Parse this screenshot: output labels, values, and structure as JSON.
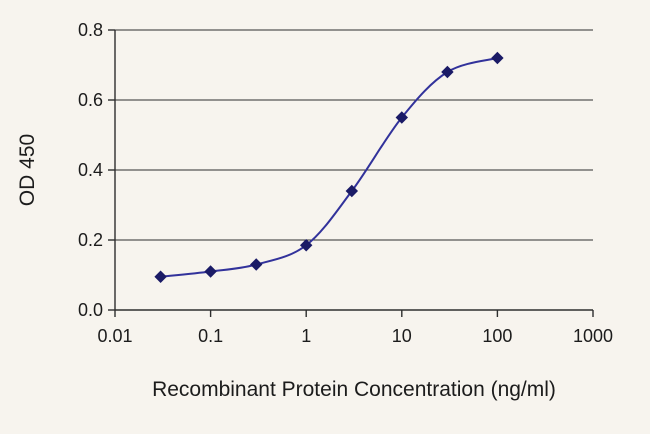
{
  "chart_data": {
    "type": "line",
    "title": "",
    "xlabel": "Recombinant Protein Concentration (ng/ml)",
    "ylabel": "OD 450",
    "x_scale": "log",
    "xlim": [
      0.01,
      1000
    ],
    "ylim": [
      0,
      0.8
    ],
    "x_ticks": [
      0.01,
      0.1,
      1,
      10,
      100,
      1000
    ],
    "x_tick_labels": [
      "0.01",
      "0.1",
      "1",
      "10",
      "100",
      "1000"
    ],
    "y_ticks": [
      0,
      0.2,
      0.4,
      0.6,
      0.8
    ],
    "y_tick_labels": [
      "0.0",
      "0.2",
      "0.4",
      "0.6",
      "0.8"
    ],
    "grid": "horizontal",
    "legend": "none",
    "marker": "diamond",
    "series": [
      {
        "name": "OD 450",
        "x": [
          0.03,
          0.1,
          0.3,
          1,
          3,
          10,
          30,
          100
        ],
        "y": [
          0.095,
          0.11,
          0.13,
          0.185,
          0.34,
          0.55,
          0.68,
          0.72
        ]
      }
    ],
    "colors": {
      "line": "#32329b",
      "marker": "#1b1b66",
      "grid": "#2e2e2e",
      "axis": "#2e2e2e",
      "background": "#f7f4ee",
      "text": "#1c1c1c"
    }
  }
}
